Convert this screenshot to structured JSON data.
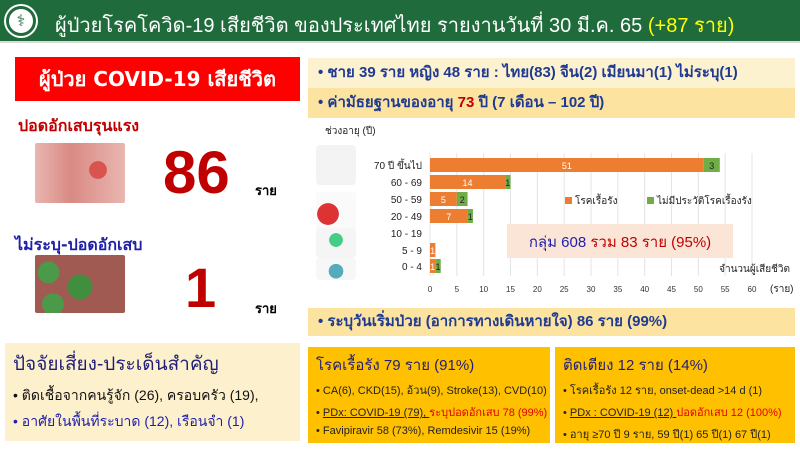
{
  "header": {
    "title": "ผู้ป่วยโรคโควิด-19 เสียชีวิต ของประเทศไทย รายงานวันที่ 30 มี.ค. 65",
    "title_highlight": "(+87 ราย)",
    "logo_icon": "moph-caduceus-logo"
  },
  "left": {
    "banner": "ผู้ป่วย COVID-19  เสียชีวิต",
    "severe_label": "ปอดอักเสบรุนแรง",
    "severe_count": "86",
    "unit": "ราย",
    "unspecified_label": "ไม่ระบุ-ปอดอักเสบ",
    "unspecified_count": "1"
  },
  "summary": {
    "line1": "ชาย 39 ราย หญิง 48 ราย : ไทย(83) จีน(2) เมียนมา(1) ไม่ระบุ(1)",
    "line2_prefix": "ค่ามัธยฐานของอายุ ",
    "line2_median": "73",
    "line2_suffix": " ปี (7 เดือน – 102 ปี)",
    "onset": "ระบุวันเริ่มป่วย (อาการทางเดินหายใจ) 86 ราย (99%)"
  },
  "chart_data": {
    "type": "bar",
    "orientation": "horizontal",
    "stacked": true,
    "ylabel": "ช่วงอายุ (ปี)",
    "xlabel": "จำนวนผู้เสียชีวิต",
    "xunit": "(ราย)",
    "categories": [
      "70 ปี ขึ้นไป",
      "60 - 69",
      "50 - 59",
      "20 - 49",
      "10 - 19",
      "5 - 9",
      "0 - 4"
    ],
    "series": [
      {
        "name": "โรคเรื้อรัง",
        "color": "#ed7d31",
        "values": [
          51,
          14,
          5,
          7,
          0,
          1,
          1
        ]
      },
      {
        "name": "ไม่มีประวัติโรคเรื้องรัง",
        "color": "#70ad47",
        "values": [
          3,
          1,
          2,
          1,
          0,
          0,
          1
        ]
      }
    ],
    "xlim": [
      0,
      60
    ],
    "xticks": [
      0,
      5,
      10,
      15,
      20,
      25,
      30,
      35,
      40,
      45,
      50,
      55,
      60
    ],
    "grid": true,
    "legend": "right-middle",
    "annotation": {
      "prefix": "กลุ่ม 608 ",
      "suffix": "รวม 83 ราย (95%)"
    }
  },
  "risk": {
    "title": "ปัจจัยเสี่ยง-ประเด็นสำคัญ",
    "items": [
      "ติดเชื้อจากคนรู้จัก (26), ครอบครัว (19),",
      "อาศัยในพื้นที่ระบาด (12), เรือนจำ (1)"
    ]
  },
  "chronic": {
    "title": "โรคเรื้อรัง 79 ราย (91%)",
    "item1": "CA(6), CKD(15), อ้วน(9), Stroke(13), CVD(10)",
    "item2a": "PDx: COVID-19 (79), ",
    "item2b": "ระบุปอดอักเสบ 78 (99%)",
    "item3": "Favipiravir 58 (73%), Remdesivir 15 (19%)"
  },
  "bedridden": {
    "title": "ติดเตียง 12 ราย (14%)",
    "item1": "โรคเรื้อรัง 12 ราย, onset-dead >14 d (1)",
    "item2a": "PDx : COVID-19 (12) ",
    "item2b": "ปอดอักเสบ 12 (100%)",
    "item3": "อายุ ≥70 ปี 9 ราย, 59 ปี(1) 65 ปี(1) 67 ปี(1)"
  }
}
